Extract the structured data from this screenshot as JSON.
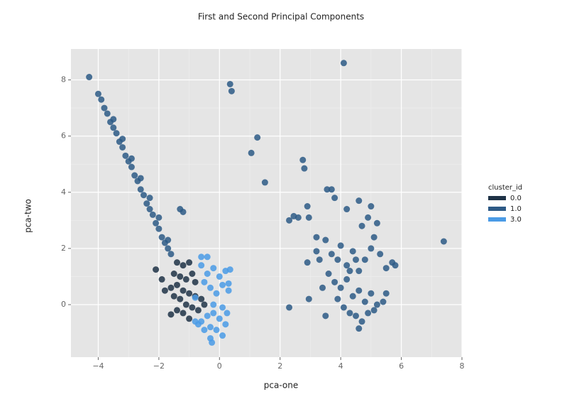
{
  "chart_data": {
    "type": "scatter",
    "title": "First and Second Principal Components",
    "x_label": "pca-one",
    "y_label": "pca-two",
    "legend_title": "cluster_id",
    "legend_position": "right",
    "grid": true,
    "xlim": [
      -4.9,
      8
    ],
    "ylim": [
      -1.87,
      9.1
    ],
    "xticks": [
      {
        "value": -4,
        "label": "−4"
      },
      {
        "value": -2,
        "label": "−2"
      },
      0,
      2,
      4,
      6,
      8
    ],
    "yticks": [
      0,
      2,
      4,
      6,
      8
    ],
    "series": [
      {
        "name": "0.0",
        "color": "#1e3246",
        "x": [
          -1.4,
          -1.2,
          -1.0,
          -1.5,
          -1.3,
          -1.1,
          -0.9,
          -0.8,
          -1.4,
          -1.2,
          -1.0,
          -0.8,
          -0.6,
          -1.3,
          -1.1,
          -0.9,
          -0.7,
          -0.5,
          -1.2,
          -1.6,
          -1.8,
          -1.9,
          -2.1,
          -1.6,
          -1.4,
          -1.0,
          -1.5
        ],
        "y": [
          1.5,
          1.4,
          1.5,
          1.1,
          1.0,
          0.9,
          1.1,
          0.8,
          0.7,
          0.5,
          0.4,
          0.3,
          0.2,
          0.2,
          0.0,
          -0.1,
          -0.2,
          0.0,
          -0.3,
          0.6,
          0.5,
          0.9,
          1.25,
          -0.35,
          -0.2,
          -0.5,
          0.3
        ]
      },
      {
        "name": "1.0",
        "color": "#2d5a86",
        "x": [
          -4.3,
          -4.0,
          -3.9,
          -3.8,
          -3.7,
          -3.6,
          -3.5,
          -3.4,
          -3.3,
          -3.2,
          -3.1,
          -3.0,
          -2.9,
          -2.8,
          -2.7,
          -2.6,
          -2.5,
          -2.4,
          -2.3,
          -2.2,
          -2.1,
          -2.0,
          -1.9,
          -1.8,
          -1.7,
          -1.6,
          -3.5,
          -3.2,
          -2.9,
          -2.6,
          -2.3,
          -2.0,
          -1.7,
          -1.3,
          -1.2,
          0.35,
          0.4,
          1.25,
          1.05,
          1.5,
          4.1,
          7.4,
          2.75,
          2.8,
          2.3,
          2.45,
          2.6,
          2.9,
          2.95,
          2.3,
          2.95,
          3.5,
          3.55,
          3.7,
          3.8,
          4.2,
          2.9,
          3.5,
          3.7,
          3.9,
          4.0,
          4.2,
          4.4,
          4.6,
          3.6,
          3.8,
          4.0,
          4.2,
          4.4,
          4.6,
          4.8,
          5.0,
          5.2,
          3.9,
          4.1,
          4.3,
          4.5,
          4.7,
          4.9,
          5.1,
          4.6,
          5.4,
          5.5,
          4.8,
          5.0,
          5.1,
          5.3,
          5.5,
          5.7,
          5.8,
          4.7,
          4.9,
          5.0,
          4.6,
          5.2,
          3.4,
          3.3,
          4.3,
          4.5,
          3.2,
          3.2
        ],
        "y": [
          8.1,
          7.5,
          7.3,
          7.0,
          6.8,
          6.5,
          6.3,
          6.1,
          5.8,
          5.6,
          5.3,
          5.1,
          4.9,
          4.6,
          4.4,
          4.1,
          3.9,
          3.6,
          3.4,
          3.2,
          2.9,
          2.7,
          2.4,
          2.2,
          2.0,
          1.8,
          6.6,
          5.9,
          5.2,
          4.5,
          3.8,
          3.1,
          2.3,
          3.4,
          3.3,
          7.85,
          7.6,
          5.95,
          5.4,
          4.35,
          8.6,
          2.25,
          5.15,
          4.85,
          3.0,
          3.15,
          3.1,
          3.5,
          3.1,
          -0.1,
          0.2,
          -0.4,
          4.1,
          4.1,
          3.8,
          3.4,
          1.5,
          2.3,
          1.8,
          1.6,
          2.1,
          1.4,
          1.9,
          1.2,
          1.1,
          0.8,
          0.6,
          0.9,
          0.3,
          0.5,
          0.1,
          0.4,
          0.0,
          0.2,
          -0.1,
          -0.3,
          -0.4,
          -0.6,
          -0.3,
          -0.2,
          -0.85,
          0.1,
          0.4,
          1.6,
          2.0,
          2.4,
          1.8,
          1.3,
          1.5,
          1.4,
          2.8,
          3.1,
          3.5,
          3.7,
          2.9,
          0.6,
          1.6,
          1.2,
          1.6,
          1.9,
          2.4
        ]
      },
      {
        "name": "3.0",
        "color": "#4a9be6",
        "x": [
          -0.6,
          -0.4,
          -0.2,
          0.0,
          0.2,
          -0.3,
          -0.1,
          0.1,
          -0.3,
          -0.25,
          -0.5,
          -0.7,
          -0.8,
          0.25,
          0.1,
          -0.2,
          -0.6,
          -0.4,
          -0.2,
          0.0,
          0.2,
          0.35,
          -0.5,
          -0.3,
          0.1,
          0.3,
          -0.1,
          -0.6,
          -0.4,
          0.3,
          -0.8
        ],
        "y": [
          -0.6,
          -0.4,
          -0.3,
          -0.5,
          -0.7,
          -0.8,
          -0.9,
          -1.1,
          -1.2,
          -1.35,
          -0.9,
          -0.7,
          -0.6,
          -0.3,
          -0.1,
          0.0,
          1.4,
          1.1,
          1.3,
          1.0,
          1.2,
          1.25,
          0.8,
          0.6,
          0.7,
          0.75,
          0.4,
          1.7,
          1.7,
          0.5,
          0.25
        ]
      }
    ]
  }
}
